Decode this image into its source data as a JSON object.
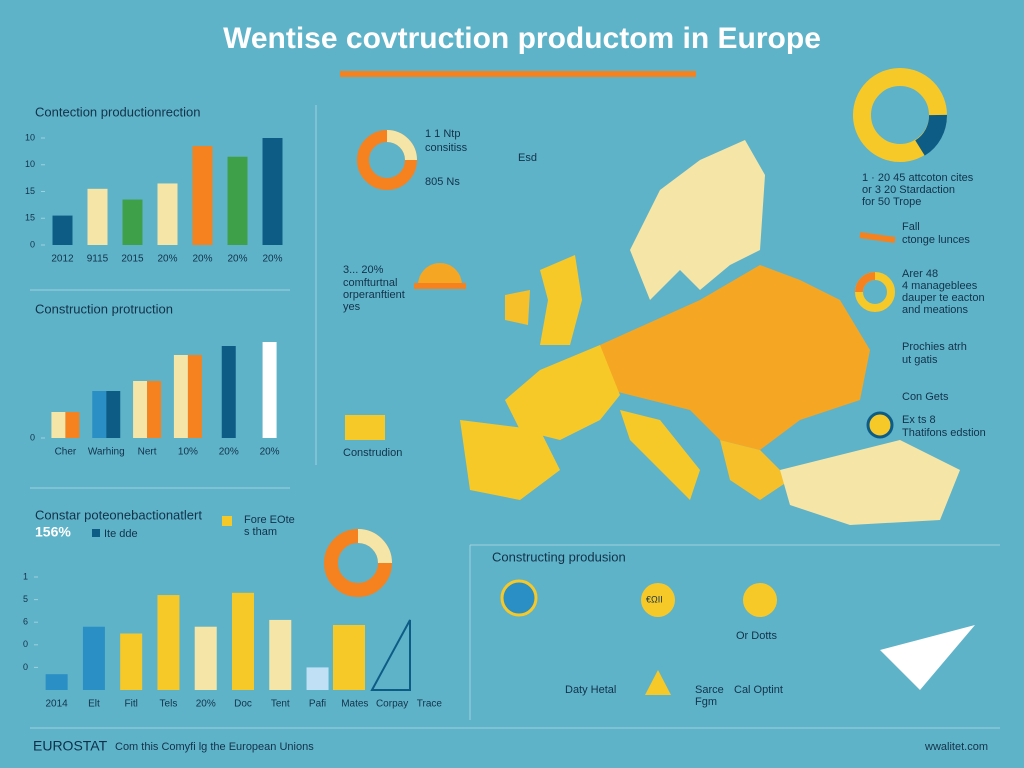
{
  "title": "Wentise covtruction productom in Europe",
  "chart_data": [
    {
      "type": "bar",
      "title": "Contection productionrection",
      "categories": [
        "2012",
        "9115",
        "2015",
        "20%",
        "20%",
        "20%",
        "20%"
      ],
      "series": [
        {
          "values": [
            1.1,
            2.1,
            1.7,
            2.3,
            3.7,
            3.3,
            4.0
          ],
          "colors": [
            "#0d5c86",
            "#f5e6a8",
            "#3fa04a",
            "#f5e6a8",
            "#f5821f",
            "#3fa04a",
            "#0d5c86"
          ]
        }
      ],
      "ylim": [
        0,
        4
      ],
      "yticks": [
        {
          "value": 0,
          "label": "0"
        },
        {
          "value": 1,
          "label": "15"
        },
        {
          "value": 2,
          "label": "15"
        },
        {
          "value": 3,
          "label": "10"
        },
        {
          "value": 4,
          "label": "10"
        }
      ],
      "grid": false
    },
    {
      "type": "bar",
      "title": "Construction protruction",
      "categories": [
        "Cher",
        "Warhing",
        "Nert",
        "10%",
        "20%",
        "20%"
      ],
      "series": [
        {
          "values": [
            2.6,
            4.7,
            5.7,
            8.3,
            9.2,
            9.6
          ],
          "colors": [
            "#f5e6a8",
            "#2a8fc4",
            "#f5e6a8",
            "#f5e6a8",
            "#0d5c86",
            "#ffffff"
          ]
        },
        {
          "values": [
            2.6,
            4.7,
            5.7,
            8.3,
            null,
            null
          ],
          "colors": [
            "#f5821f",
            "#0d5c86",
            "#f5821f",
            "#f5821f",
            null,
            null
          ]
        }
      ],
      "ylim": [
        0,
        10
      ],
      "yticks": [
        0
      ],
      "grid": false
    },
    {
      "type": "bar",
      "title": "Constar poteonebactionatlert",
      "categories": [
        "2014",
        "Elt",
        "Fitl",
        "Tels",
        "20%",
        "Doc",
        "Tent",
        "Pafi",
        "Mates",
        "Corpay",
        "Trace"
      ],
      "series": [
        {
          "values": [
            0.7,
            2.8,
            2.5,
            4.2,
            2.8,
            4.3,
            3.1,
            1.0,
            null,
            null,
            null
          ],
          "colors": [
            "#2a8fc4",
            "#2a8fc4",
            "#f7c928",
            "#f7c928",
            "#f5e6a8",
            "#f7c928",
            "#f5e6a8",
            "#bfe0f5",
            null,
            null,
            null
          ]
        }
      ],
      "ylim": [
        0,
        5
      ],
      "yticks": [
        {
          "value": 1,
          "label": "0"
        },
        {
          "value": 2,
          "label": "0"
        },
        {
          "value": 3,
          "label": "6"
        },
        {
          "value": 4,
          "label": "5"
        },
        {
          "value": 5,
          "label": "1"
        }
      ],
      "grid": false
    }
  ],
  "left_notes": [
    "156%",
    "Ite dde",
    "Fore EOte",
    "s tham"
  ],
  "middle_notes": [
    "1 1 Ntp",
    "consitiss",
    "805 Ns",
    "Esd",
    "3... 20%",
    "comfturtnal",
    "orperanftient",
    "yes",
    "Construdion"
  ],
  "right_notes": [
    "1 · 20 45 attcoton cites",
    "or 3 20 Stardaction",
    "for 50 Trope",
    "Fall",
    "ctonge lunces",
    "Arer 48",
    "4 manageblees",
    "dauper te eacton",
    "and meations",
    "Prochies atrh",
    "ut gatis",
    "Con Gets",
    "Ex ts 8",
    "Thatifons edstion"
  ],
  "bottom_panel": {
    "title": "Constructing produsion",
    "labels": [
      "€ΩII",
      "Or Dotts",
      "Daty Hetal",
      "Sarce",
      "Fgm",
      "Cal Optint"
    ]
  },
  "footer": {
    "brand": "EUROSTAT",
    "credit": "Com this Comyfi lg the European Unions",
    "site": "wwalitet.com"
  }
}
